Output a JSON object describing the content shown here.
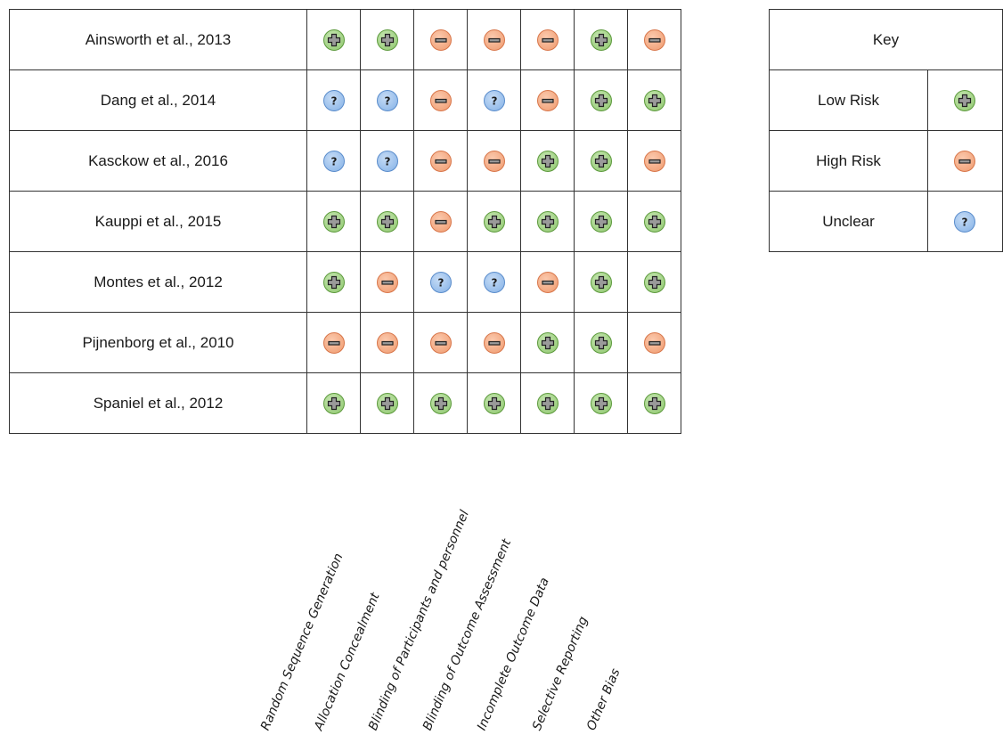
{
  "studies": [
    {
      "name": "Ainsworth et al., 2013",
      "ratings": [
        "low",
        "low",
        "high",
        "high",
        "high",
        "low",
        "high"
      ]
    },
    {
      "name": "Dang et al., 2014",
      "ratings": [
        "unclear",
        "unclear",
        "high",
        "unclear",
        "high",
        "low",
        "low"
      ]
    },
    {
      "name": "Kasckow et al., 2016",
      "ratings": [
        "unclear",
        "unclear",
        "high",
        "high",
        "low",
        "low",
        "high"
      ]
    },
    {
      "name": "Kauppi et al., 2015",
      "ratings": [
        "low",
        "low",
        "high",
        "low",
        "low",
        "low",
        "low"
      ]
    },
    {
      "name": "Montes et al., 2012",
      "ratings": [
        "low",
        "high",
        "unclear",
        "unclear",
        "high",
        "low",
        "low"
      ]
    },
    {
      "name": "Pijnenborg et al., 2010",
      "ratings": [
        "high",
        "high",
        "high",
        "high",
        "low",
        "low",
        "high"
      ]
    },
    {
      "name": "Spaniel et al., 2012",
      "ratings": [
        "low",
        "low",
        "low",
        "low",
        "low",
        "low",
        "low"
      ]
    }
  ],
  "columns": [
    "Random Sequence Generation",
    "Allocation Concealment",
    "Blinding of Participants and personnel",
    "Blinding of Outcome Assessment",
    "Incomplete Outcome Data",
    "Selective Reporting",
    "Other Bias"
  ],
  "key": {
    "title": "Key",
    "items": [
      {
        "label": "Low Risk",
        "rating": "low"
      },
      {
        "label": "High Risk",
        "rating": "high"
      },
      {
        "label": "Unclear",
        "rating": "unclear"
      }
    ]
  },
  "icons": {
    "low": "plus-icon",
    "high": "minus-icon",
    "unclear": "question-icon"
  },
  "colors": {
    "low": "#8cc56a",
    "high": "#ef9a6e",
    "unclear": "#84b1e6"
  }
}
